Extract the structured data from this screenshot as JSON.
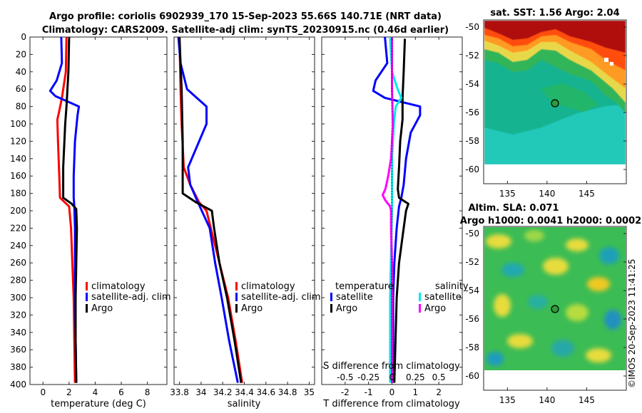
{
  "titles": {
    "line1": "Argo profile: coriolis 6902939_170 15-Sep-2023 55.66S 140.71E (NRT data)",
    "line2": "Climatology: CARS2009. Satellite-adj clim: synTS_20230915.nc (0.46d earlier)",
    "sst_title": "sat. SST: 1.56 Argo: 2.04",
    "sla_title1": "Altim. SLA: 0.071",
    "sla_title2": "Argo h1000: 0.0041 h2000: 0.0002",
    "timestamp": "©IMOS 20-Sep-2023 11:41:25"
  },
  "colors": {
    "climatology": "#ff0000",
    "satellite": "#0000ff",
    "argo": "#000000",
    "s_satellite": "#00e8e8",
    "s_argo": "#ff00ff"
  },
  "chart_data": [
    {
      "type": "line",
      "panel": "temperature",
      "xlabel": "temperature (deg C)",
      "ylabel": "",
      "xlim": [
        -1,
        9.5
      ],
      "ylim": [
        400,
        0
      ],
      "xticks": [
        "0",
        "2",
        "4",
        "6",
        "8"
      ],
      "yticks": [
        "0",
        "20",
        "40",
        "60",
        "80",
        "100",
        "120",
        "140",
        "160",
        "180",
        "200",
        "220",
        "240",
        "260",
        "280",
        "300",
        "320",
        "340",
        "360",
        "380",
        "400"
      ],
      "legend": [
        "climatology",
        "satellite-adj. clim",
        "Argo"
      ],
      "series": [
        {
          "name": "climatology",
          "color_key": "climatology",
          "depth": [
            0,
            40,
            70,
            85,
            95,
            120,
            160,
            185,
            195,
            220,
            260,
            300,
            350,
            398
          ],
          "values": [
            1.8,
            1.75,
            1.45,
            1.25,
            1.1,
            1.15,
            1.25,
            1.3,
            2.0,
            2.15,
            2.25,
            2.35,
            2.4,
            2.45
          ]
        },
        {
          "name": "satellite-adj. clim",
          "color_key": "satellite",
          "depth": [
            0,
            30,
            50,
            62,
            68,
            75,
            80,
            90,
            120,
            160,
            185,
            195,
            220,
            260,
            300,
            350,
            398
          ],
          "values": [
            1.4,
            1.45,
            1.05,
            0.55,
            0.95,
            2.0,
            2.75,
            2.65,
            2.45,
            2.35,
            2.35,
            2.4,
            2.45,
            2.45,
            2.45,
            2.5,
            2.55
          ]
        },
        {
          "name": "Argo",
          "color_key": "argo",
          "depth": [
            0,
            40,
            80,
            100,
            150,
            185,
            192,
            198,
            220,
            260,
            300,
            350,
            398
          ],
          "values": [
            2.0,
            1.95,
            1.8,
            1.7,
            1.55,
            1.55,
            2.2,
            2.55,
            2.6,
            2.55,
            2.5,
            2.5,
            2.55
          ]
        }
      ]
    },
    {
      "type": "line",
      "panel": "salinity",
      "xlabel": "salinity",
      "xlim": [
        33.75,
        35.05
      ],
      "ylim": [
        400,
        0
      ],
      "xticks": [
        "33.8",
        "34",
        "34.2",
        "34.4",
        "34.6",
        "34.8",
        "35"
      ],
      "legend": [
        "climatology",
        "satellite-adj. clim",
        "Argo"
      ],
      "series": [
        {
          "name": "climatology",
          "color_key": "climatology",
          "depth": [
            0,
            60,
            100,
            150,
            170,
            190,
            200,
            250,
            300,
            350,
            398
          ],
          "values": [
            33.8,
            33.81,
            33.82,
            33.84,
            33.9,
            33.98,
            34.05,
            34.15,
            34.25,
            34.32,
            34.38
          ]
        },
        {
          "name": "satellite-adj. clim",
          "color_key": "satellite",
          "depth": [
            0,
            30,
            60,
            80,
            100,
            150,
            170,
            190,
            220,
            260,
            300,
            350,
            398
          ],
          "values": [
            33.79,
            33.81,
            33.87,
            34.05,
            34.05,
            33.88,
            33.9,
            33.97,
            34.08,
            34.13,
            34.19,
            34.26,
            34.34
          ]
        },
        {
          "name": "Argo",
          "color_key": "argo",
          "depth": [
            0,
            60,
            120,
            150,
            170,
            180,
            190,
            200,
            220,
            260,
            300,
            350,
            398
          ],
          "values": [
            33.8,
            33.82,
            33.83,
            33.83,
            33.83,
            33.83,
            33.95,
            34.1,
            34.12,
            34.17,
            34.24,
            34.31,
            34.37
          ]
        }
      ]
    },
    {
      "type": "line",
      "panel": "difference",
      "xlabel": "T difference from climatology",
      "xlabel_top": "S difference from climatology",
      "xlim": [
        -3,
        3
      ],
      "xlim_top": [
        -0.75,
        0.75
      ],
      "ylim": [
        400,
        0
      ],
      "xticks": [
        "-2",
        "-1",
        "0",
        "1",
        "2"
      ],
      "xticks_top": [
        "-0.5",
        "-0.25",
        "0",
        "0.25",
        "0.5"
      ],
      "legend_headers": [
        "temperature",
        "salinity"
      ],
      "legend_left": [
        "satellite",
        "Argo"
      ],
      "legend_right": [
        "satellite",
        "Argo"
      ],
      "series": [
        {
          "name": "T satellite",
          "color_key": "satellite",
          "depth": [
            0,
            30,
            50,
            62,
            70,
            80,
            90,
            110,
            140,
            170,
            185,
            195,
            220,
            260,
            300,
            350,
            398
          ],
          "values": [
            -0.3,
            -0.2,
            -0.7,
            -0.8,
            -0.3,
            1.2,
            1.2,
            0.8,
            0.6,
            0.5,
            0.4,
            0.3,
            0.2,
            0.1,
            0.05,
            0.05,
            0.05
          ]
        },
        {
          "name": "T Argo",
          "color_key": "argo",
          "depth": [
            2,
            40,
            70,
            95,
            120,
            150,
            175,
            185,
            192,
            200,
            220,
            260,
            300,
            350,
            398
          ],
          "values": [
            0.55,
            0.5,
            0.45,
            0.45,
            0.35,
            0.3,
            0.25,
            0.3,
            0.7,
            0.6,
            0.5,
            0.3,
            0.2,
            0.15,
            0.1
          ]
        },
        {
          "name": "S satellite",
          "color_key": "s_satellite",
          "depth": [
            0,
            40,
            60,
            70,
            80,
            100,
            140,
            180,
            200,
            250,
            300,
            350,
            398
          ],
          "values": [
            -0.02,
            0.0,
            0.06,
            0.1,
            0.04,
            0.02,
            0.0,
            0.0,
            0.0,
            -0.01,
            -0.02,
            -0.02,
            -0.02
          ]
        },
        {
          "name": "S Argo",
          "color_key": "s_argo",
          "depth": [
            0,
            60,
            100,
            140,
            160,
            175,
            182,
            188,
            195,
            200,
            220,
            260,
            300,
            350,
            398
          ],
          "values": [
            0.0,
            0.0,
            0.01,
            -0.01,
            -0.04,
            -0.07,
            -0.1,
            -0.07,
            -0.02,
            -0.01,
            -0.01,
            0.0,
            0.0,
            0.0,
            0.0
          ]
        }
      ]
    },
    {
      "type": "heatmap",
      "panel": "sst_map",
      "title": "sat. SST: 1.56 Argo: 2.04",
      "xlim": [
        132,
        150
      ],
      "ylim": [
        -61,
        -49.5
      ],
      "xticks": [
        "135",
        "140",
        "145"
      ],
      "yticks": [
        "-50",
        "-52",
        "-54",
        "-56",
        "-58",
        "-60"
      ],
      "argo_position": [
        140.71,
        -55.66
      ]
    },
    {
      "type": "heatmap",
      "panel": "sla_map",
      "title": "Altim. SLA: 0.071",
      "xlim": [
        132,
        150
      ],
      "ylim": [
        -61,
        -49.5
      ],
      "xticks": [
        "135",
        "140",
        "145"
      ],
      "yticks": [
        "-50",
        "-52",
        "-54",
        "-56",
        "-58",
        "-60"
      ],
      "argo_position": [
        140.71,
        -55.66
      ]
    }
  ]
}
